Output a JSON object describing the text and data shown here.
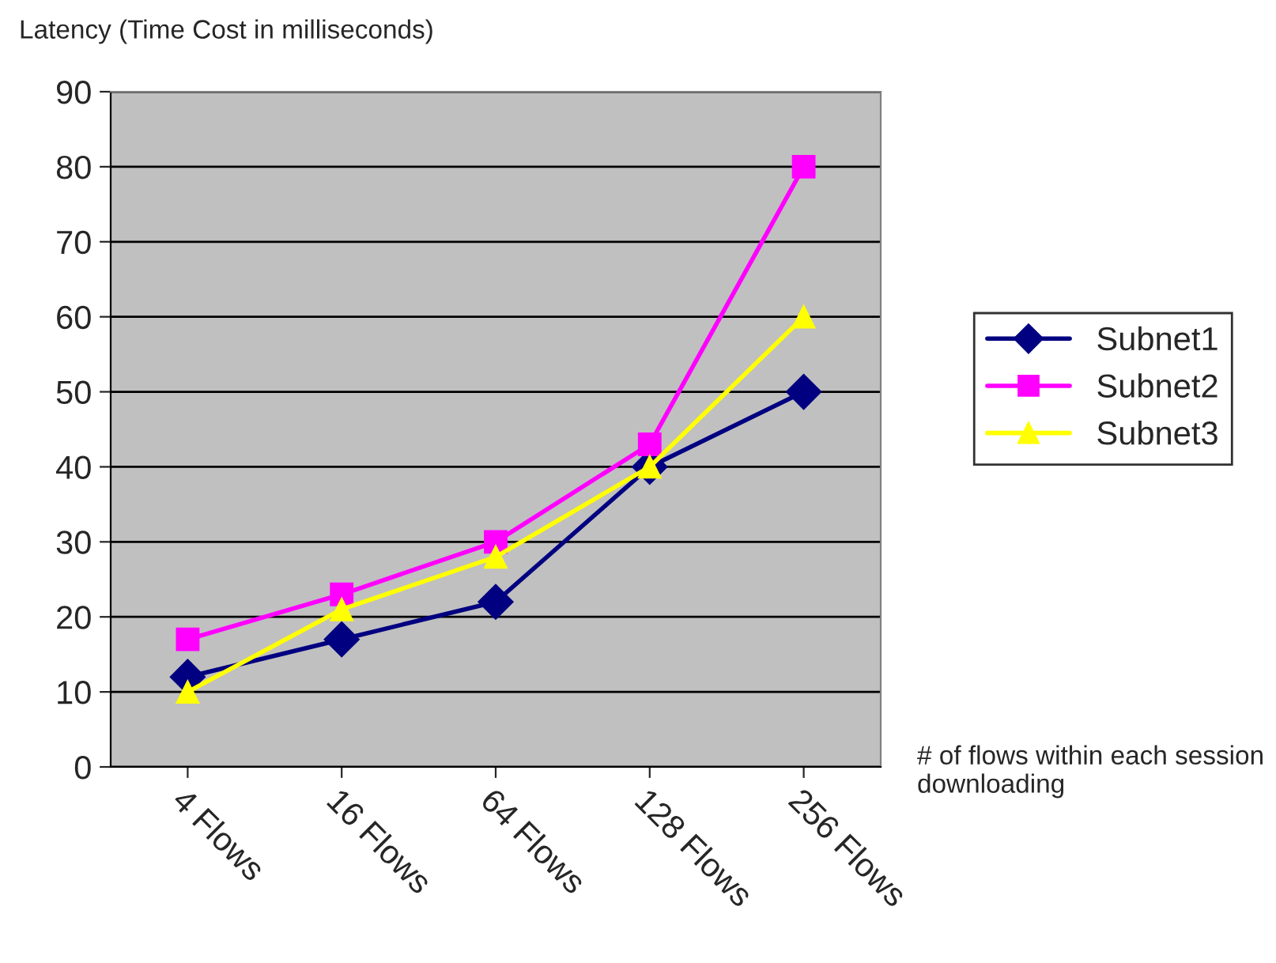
{
  "chart_data": {
    "type": "line",
    "ylabel": "Latency (Time Cost in milliseconds)",
    "xlabel": "# of flows within each session downloading",
    "categories": [
      "4 Flows",
      "16 Flows",
      "64 Flows",
      "128 Flows",
      "256 Flows"
    ],
    "series": [
      {
        "name": "Subnet1",
        "color": "#000080",
        "marker": "diamond",
        "values": [
          12,
          17,
          22,
          40,
          50
        ]
      },
      {
        "name": "Subnet2",
        "color": "#ff00ff",
        "marker": "square",
        "values": [
          17,
          23,
          30,
          43,
          80
        ]
      },
      {
        "name": "Subnet3",
        "color": "#ffff00",
        "marker": "triangle",
        "values": [
          10,
          21,
          28,
          40,
          60
        ]
      }
    ],
    "ylim": [
      0,
      90
    ],
    "yticks": [
      0,
      10,
      20,
      30,
      40,
      50,
      60,
      70,
      80,
      90
    ],
    "grid": "y",
    "legend": "right",
    "line_style": "solid"
  }
}
